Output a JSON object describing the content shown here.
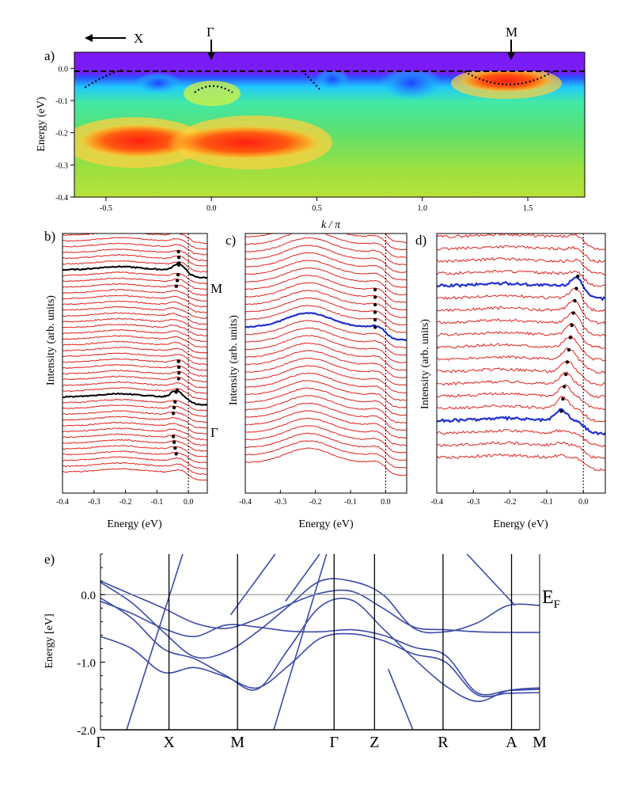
{
  "chart_data": [
    {
      "panel": "a)",
      "type": "heatmap",
      "xlabel": "k / π",
      "ylabel": "Energy (eV)",
      "xlim": [
        -0.65,
        1.77
      ],
      "ylim": [
        -0.4,
        0.05
      ],
      "xticks": [
        "-0.5",
        "0.0",
        "0.5",
        "1.0",
        "1.5"
      ],
      "yticks": [
        "0.0",
        "-0.1",
        "-0.2",
        "-0.3",
        "-0.4"
      ],
      "annotations": {
        "x_arrow": "X",
        "gamma": "Γ",
        "m": "M"
      },
      "symmetry_points": [
        {
          "label": "Γ",
          "k": 0.0
        },
        {
          "label": "M",
          "k": 1.41
        }
      ],
      "fermi_level": 0.0
    },
    {
      "panel": "b)",
      "type": "line",
      "xlabel": "Energy (eV)",
      "ylabel": "Intensity (arb. units)",
      "xlim": [
        -0.4,
        0.06
      ],
      "xticks": [
        "-0.4",
        "-0.3",
        "-0.2",
        "-0.1",
        "0.0"
      ],
      "n_curves": 42,
      "highlighted": [
        {
          "label": "M",
          "index": 6,
          "color": "#000000"
        },
        {
          "label": "Γ",
          "index": 28,
          "color": "#000000"
        }
      ]
    },
    {
      "panel": "c)",
      "type": "line",
      "xlabel": "Energy (eV)",
      "ylabel": "Intensity (arb. units)",
      "xlim": [
        -0.4,
        0.06
      ],
      "xticks": [
        "-0.4",
        "-0.3",
        "-0.2",
        "-0.1",
        "0.0"
      ],
      "n_curves": 32,
      "highlighted": [
        {
          "index": 13,
          "color": "#2230d0"
        }
      ]
    },
    {
      "panel": "d)",
      "type": "line",
      "xlabel": "Energy (eV)",
      "ylabel": "Intensity (arb. units)",
      "xlim": [
        -0.4,
        0.06
      ],
      "xticks": [
        "-0.4",
        "-0.3",
        "-0.2",
        "-0.1",
        "0.0"
      ],
      "n_curves": 19,
      "highlighted": [
        {
          "index": 4,
          "color": "#2230d0"
        },
        {
          "index": 15,
          "color": "#2230d0"
        }
      ]
    },
    {
      "panel": "e)",
      "type": "line",
      "ylabel": "Energy [eV]",
      "ylim": [
        -2.0,
        0.6
      ],
      "yticks": [
        "0.0",
        "-1.0",
        "-2.0"
      ],
      "k_points": [
        "Γ",
        "X",
        "M",
        "Γ",
        "Z",
        "R",
        "A",
        "M"
      ],
      "k_positions": [
        0.0,
        1.0,
        2.0,
        3.41,
        4.0,
        5.0,
        6.0,
        6.41
      ],
      "fermi_label": "E",
      "fermi_sub": "F",
      "bands": [
        [
          0.2,
          0.0,
          -0.2,
          -0.42,
          -0.5,
          -0.36,
          -0.15,
          0.02,
          0.05,
          -0.2,
          -0.48,
          -0.52,
          -0.55,
          -0.56,
          -0.56
        ],
        [
          0.18,
          -0.12,
          -0.55,
          -0.92,
          -0.85,
          -0.55,
          -0.17,
          0.2,
          0.2,
          0.0,
          -0.5,
          -0.55,
          -0.42,
          -0.16,
          -0.16
        ],
        [
          -0.1,
          -0.28,
          -0.5,
          -0.62,
          -0.45,
          -0.48,
          -0.54,
          -0.55,
          -0.52,
          -0.6,
          -0.78,
          -0.9,
          -1.45,
          -1.42,
          -1.4
        ],
        [
          -0.62,
          -0.8,
          -1.15,
          -1.08,
          -1.22,
          -1.38,
          -1.05,
          -0.65,
          -0.58,
          -0.68,
          -0.88,
          -1.0,
          -1.48,
          -1.46,
          -1.45
        ],
        [
          -0.05,
          -0.35,
          -0.8,
          -0.95,
          -1.2,
          -1.4,
          -0.8,
          -0.18,
          -0.08,
          -0.5,
          -0.95,
          -1.35,
          -1.58,
          -1.42,
          -1.38
        ]
      ]
    }
  ]
}
